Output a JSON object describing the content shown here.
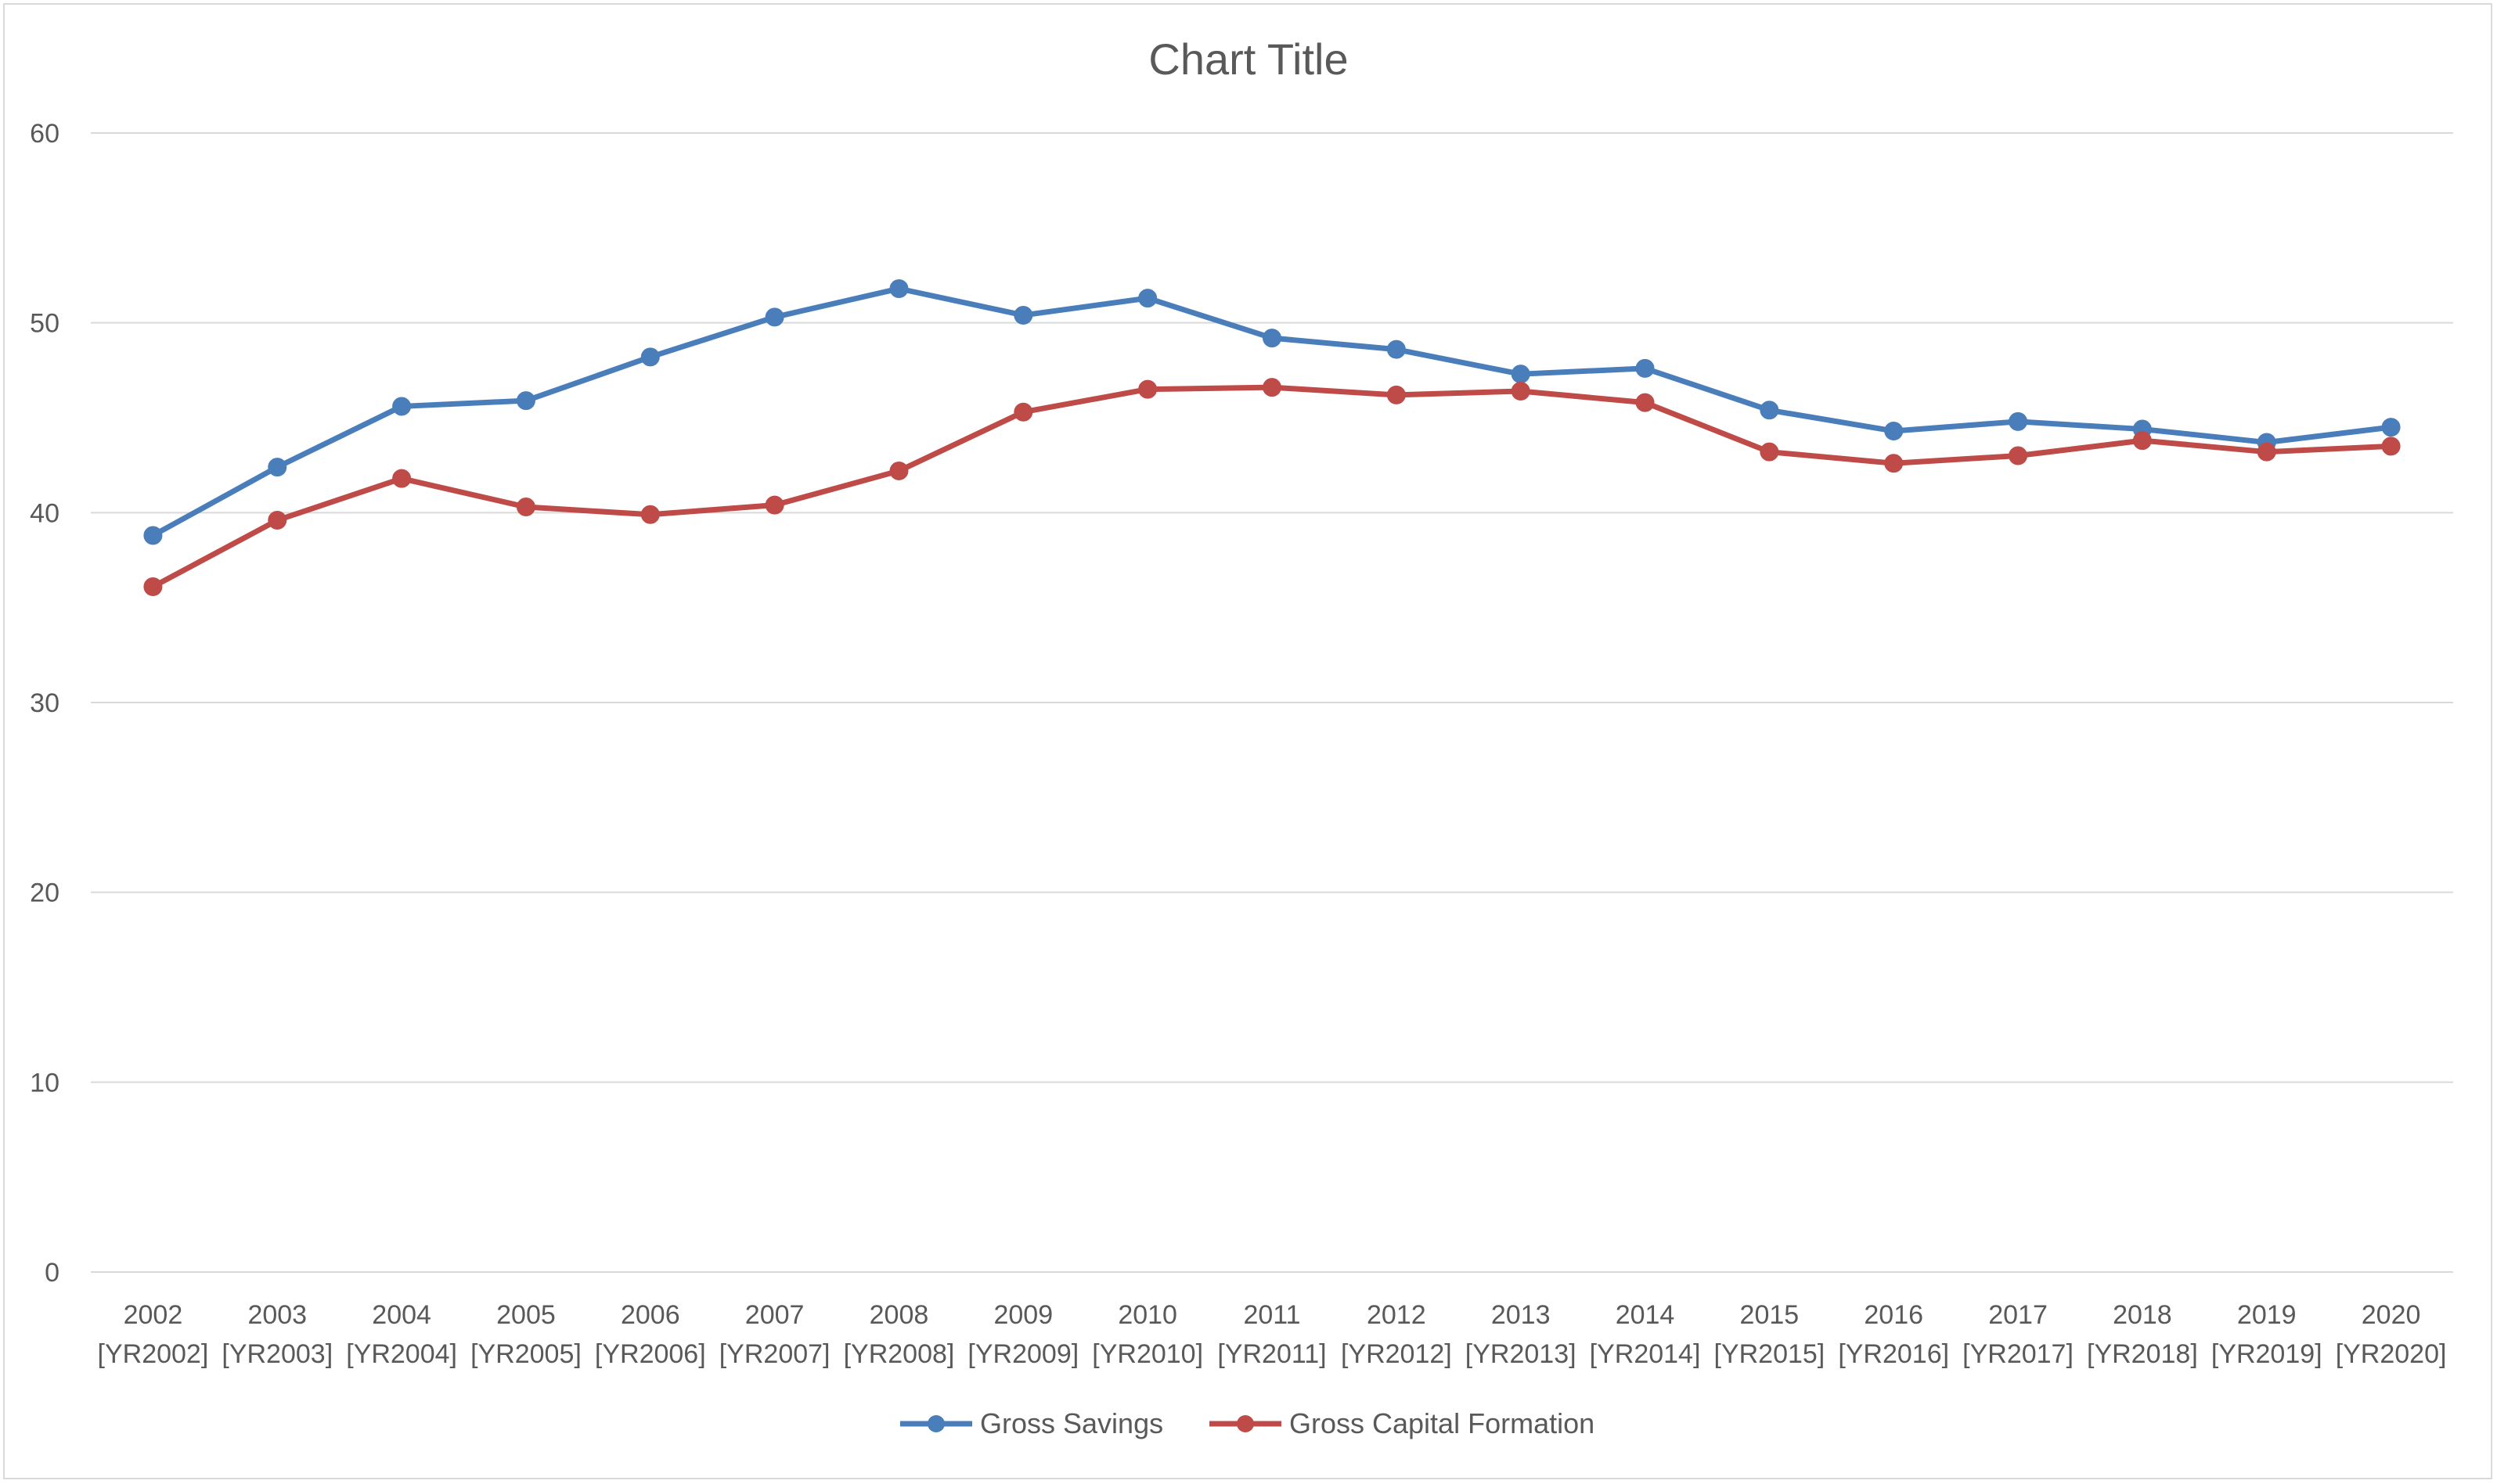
{
  "chart_data": {
    "type": "line",
    "title": "Chart Title",
    "xlabel": "",
    "ylabel": "",
    "ylim": [
      0,
      60
    ],
    "yticks": [
      "0",
      "10",
      "20",
      "30",
      "40",
      "50",
      "60"
    ],
    "grid": true,
    "legend_position": "bottom",
    "categories": [
      [
        "2002",
        "[YR2002]"
      ],
      [
        "2003",
        "[YR2003]"
      ],
      [
        "2004",
        "[YR2004]"
      ],
      [
        "2005",
        "[YR2005]"
      ],
      [
        "2006",
        "[YR2006]"
      ],
      [
        "2007",
        "[YR2007]"
      ],
      [
        "2008",
        "[YR2008]"
      ],
      [
        "2009",
        "[YR2009]"
      ],
      [
        "2010",
        "[YR2010]"
      ],
      [
        "2011",
        "[YR2011]"
      ],
      [
        "2012",
        "[YR2012]"
      ],
      [
        "2013",
        "[YR2013]"
      ],
      [
        "2014",
        "[YR2014]"
      ],
      [
        "2015",
        "[YR2015]"
      ],
      [
        "2016",
        "[YR2016]"
      ],
      [
        "2017",
        "[YR2017]"
      ],
      [
        "2018",
        "[YR2018]"
      ],
      [
        "2019",
        "[YR2019]"
      ],
      [
        "2020",
        "[YR2020]"
      ]
    ],
    "series": [
      {
        "name": "Gross Savings",
        "color": "#4a7ebb",
        "values": [
          38.8,
          42.4,
          45.6,
          45.9,
          48.2,
          50.3,
          51.8,
          50.4,
          51.3,
          49.2,
          48.6,
          47.3,
          47.6,
          45.4,
          44.3,
          44.8,
          44.4,
          43.7,
          44.5
        ]
      },
      {
        "name": "Gross Capital Formation",
        "color": "#be4b48",
        "values": [
          36.1,
          39.6,
          41.8,
          40.3,
          39.9,
          40.4,
          42.2,
          45.3,
          46.5,
          46.6,
          46.2,
          46.4,
          45.8,
          43.2,
          42.6,
          43.0,
          43.8,
          43.2,
          43.5
        ]
      }
    ]
  }
}
